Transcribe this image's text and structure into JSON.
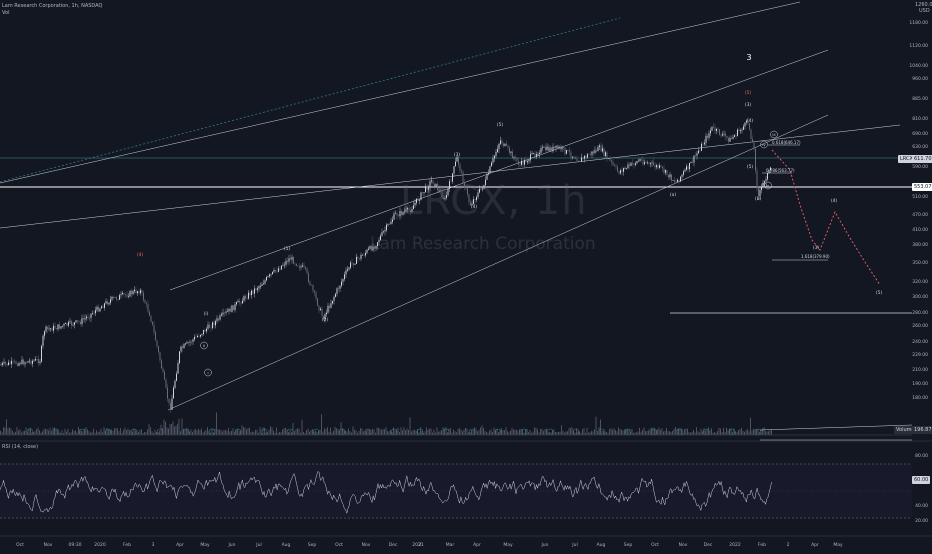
{
  "header": {
    "symbol_line": "Lam Research Corporation, 1h, NASDAQ",
    "volume_label": "Vol",
    "watermark_ticker": "LRCX, 1h",
    "watermark_name": "Lam Research Corporation",
    "currency": "USD",
    "top_price": "1260.00"
  },
  "price_axis": {
    "labels": [
      "1180.00",
      "1120.00",
      "1040.00",
      "960.00",
      "885.00",
      "810.00",
      "690.00",
      "630.00",
      "590.00",
      "510.00",
      "470.00",
      "410.00",
      "380.00",
      "350.00",
      "320.00",
      "300.00",
      "280.00",
      "260.00",
      "240.00",
      "229.00",
      "210.00",
      "190.00",
      "180.00"
    ],
    "current_price_tag": "553.07",
    "symbol_tag_label": "LRCX",
    "symbol_tag_value": "611.70",
    "volume_tag_label": "Volume",
    "volume_tag_value": "196.87K"
  },
  "rsi": {
    "label": "RSI (14, close)",
    "levels": [
      "80.00",
      "60.00",
      "40.00",
      "20.00"
    ],
    "current_value": "60.00"
  },
  "time_axis": [
    "Oct",
    "Nov",
    "09:30",
    "2020",
    "Feb",
    "3",
    "Apr",
    "May",
    "Jun",
    "Jul",
    "Aug",
    "Sep",
    "Oct",
    "Nov",
    "Dec",
    "2",
    "2021",
    "Mar",
    "Apr",
    "May",
    "Jun",
    "Jul",
    "Aug",
    "Sep",
    "Oct",
    "Nov",
    "Dec",
    "2022",
    "Feb",
    "2",
    "Apr",
    "May"
  ],
  "annotations": {
    "big_wave": "3",
    "fib_618": "0.618(646.17)",
    "fib_786": "0.786(563.77)",
    "fib_1618": "1.618(379.90)",
    "top_labels": [
      "(4)",
      "(5)",
      "(1)",
      "(2)",
      "(3)",
      "(4)",
      "(5)",
      "(3)",
      "(4)",
      "(5)",
      "(b)",
      "(a)",
      "(i)"
    ],
    "circled": [
      "iii",
      "iv",
      "v",
      "i",
      "ii"
    ],
    "projection": [
      "(4)",
      "(5)",
      "(3)",
      "(5)"
    ]
  },
  "chart_data": {
    "type": "candlestick",
    "title": "Lam Research Corporation, 1h, NASDAQ",
    "x_ticks": [
      "Oct",
      "Nov",
      "09:30",
      "2020",
      "Feb",
      "3",
      "Apr",
      "May",
      "Jun",
      "Jul",
      "Aug",
      "Sep",
      "Oct",
      "Nov",
      "Dec",
      "2",
      "2021",
      "Mar",
      "Apr",
      "May",
      "Jun",
      "Jul",
      "Aug",
      "Sep",
      "Oct",
      "Nov",
      "Dec",
      "2022",
      "Feb",
      "2",
      "Apr",
      "May"
    ],
    "y_ticks": [
      1180,
      1120,
      1040,
      960,
      885,
      810,
      690,
      630,
      590,
      510,
      470,
      410,
      380,
      350,
      320,
      300,
      280,
      260,
      240,
      229,
      210,
      190,
      180
    ],
    "price_path": [
      [
        "Oct 2019",
        240
      ],
      [
        "Nov 2019",
        270
      ],
      [
        "Dec 2019",
        295
      ],
      [
        "Jan 2020",
        335
      ],
      [
        "Feb 2020",
        350
      ],
      [
        "Mar 2020",
        190
      ],
      [
        "Apr 2020",
        255
      ],
      [
        "May 2020",
        300
      ],
      [
        "Jun 2020",
        340
      ],
      [
        "Jul 2020",
        395
      ],
      [
        "Aug 2020",
        370
      ],
      [
        "Sep 2020",
        318
      ],
      [
        "Oct 2020",
        365
      ],
      [
        "Nov 2020",
        410
      ],
      [
        "Dec 2020",
        470
      ],
      [
        "Jan 2021",
        565
      ],
      [
        "Feb 2021",
        585
      ],
      [
        "Mar 2021",
        540
      ],
      [
        "Apr 2021",
        660
      ],
      [
        "May 2021",
        625
      ],
      [
        "Jun 2021",
        640
      ],
      [
        "Jul 2021",
        650
      ],
      [
        "Aug 2021",
        630
      ],
      [
        "Sep 2021",
        605
      ],
      [
        "Oct 2021",
        560
      ],
      [
        "Nov 2021",
        640
      ],
      [
        "Dec 2021",
        690
      ],
      [
        "Jan 2022",
        700
      ],
      [
        "Feb 2022",
        525
      ]
    ],
    "projection_path": [
      [
        "Feb 2022",
        646
      ],
      [
        "Mar 2022",
        470
      ],
      [
        "Mar 2022 late",
        385
      ],
      [
        "Apr 2022",
        510
      ],
      [
        "May 2022",
        340
      ]
    ],
    "horizontal_levels": [
      553.07,
      611.7,
      300
    ],
    "rsi": {
      "name": "RSI (14, close)",
      "levels": [
        80,
        60,
        40,
        20
      ]
    }
  }
}
